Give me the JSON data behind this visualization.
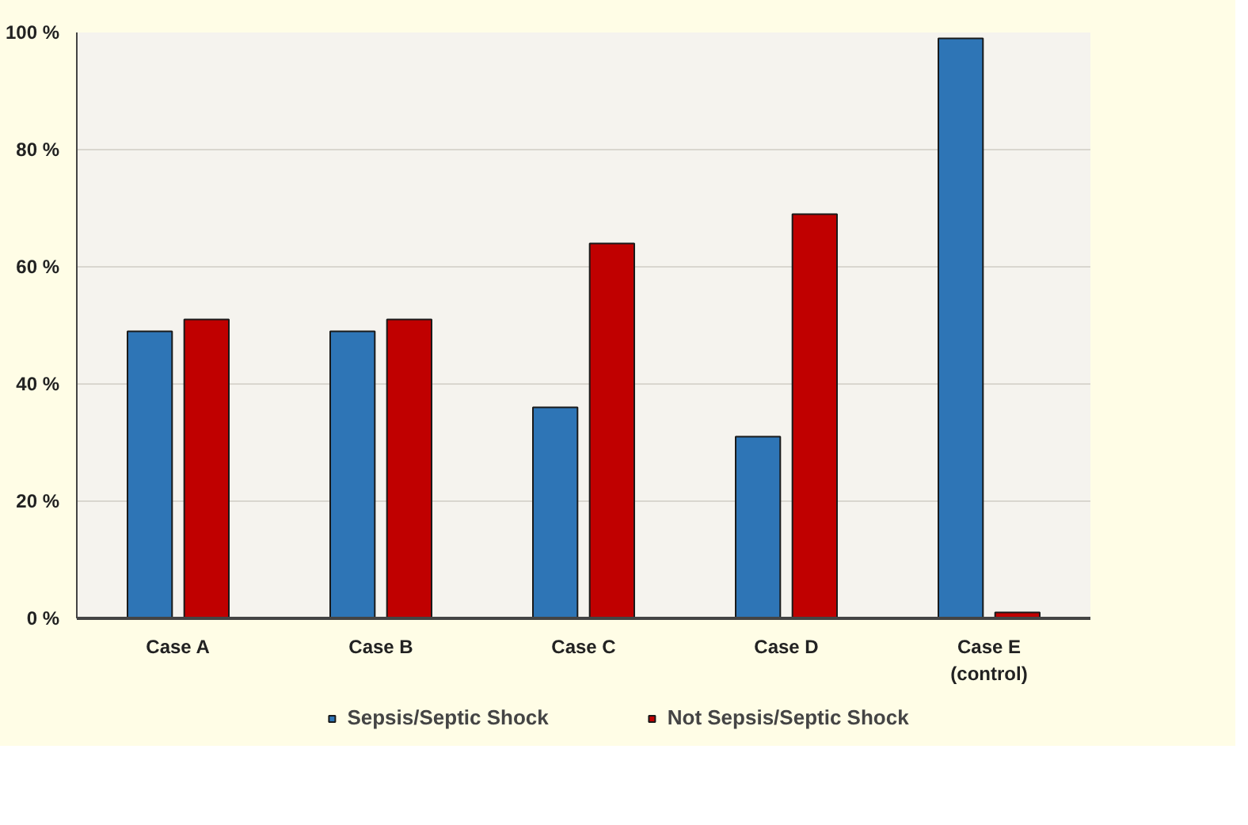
{
  "chart_data": {
    "type": "bar",
    "categories": [
      "Case A",
      "Case B",
      "Case C",
      "Case D",
      "Case E\n(control)"
    ],
    "series": [
      {
        "name": "Sepsis/Septic Shock",
        "color": "#2e75b6",
        "values": [
          49,
          49,
          36,
          31,
          99
        ]
      },
      {
        "name": "Not Sepsis/Septic Shock",
        "color": "#c00000",
        "values": [
          51,
          51,
          64,
          69,
          1
        ]
      }
    ],
    "ylim": [
      0,
      100
    ],
    "yticks": [
      {
        "value": 0,
        "label": "0 %"
      },
      {
        "value": 20,
        "label": "20 %"
      },
      {
        "value": 40,
        "label": "40 %"
      },
      {
        "value": 60,
        "label": "60 %"
      },
      {
        "value": 80,
        "label": "80 %"
      },
      {
        "value": 100,
        "label": "100 %"
      }
    ],
    "grid": "y",
    "legend": "bottom"
  }
}
